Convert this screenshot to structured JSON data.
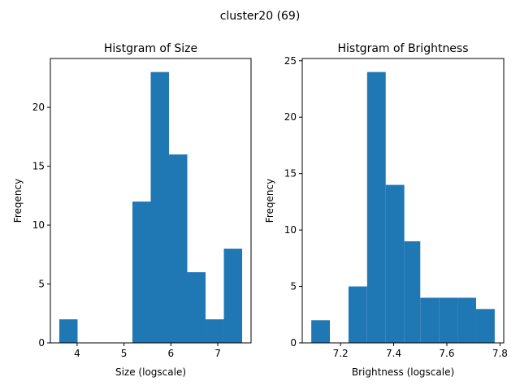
{
  "figure": {
    "suptitle": "cluster20 (69)",
    "bar_color": "#1f77b4"
  },
  "chart_data": [
    {
      "type": "bar",
      "title": "Histgram of Size",
      "xlabel": "Size (logscale)",
      "ylabel": "Freqency",
      "bins": [
        {
          "x0": 3.62,
          "x1": 4.01,
          "count": 2
        },
        {
          "x0": 4.01,
          "x1": 4.4,
          "count": 0
        },
        {
          "x0": 4.4,
          "x1": 4.79,
          "count": 0
        },
        {
          "x0": 4.79,
          "x1": 5.18,
          "count": 0
        },
        {
          "x0": 5.18,
          "x1": 5.57,
          "count": 12
        },
        {
          "x0": 5.57,
          "x1": 5.96,
          "count": 23
        },
        {
          "x0": 5.96,
          "x1": 6.35,
          "count": 16
        },
        {
          "x0": 6.35,
          "x1": 6.74,
          "count": 6
        },
        {
          "x0": 6.74,
          "x1": 7.13,
          "count": 2
        },
        {
          "x0": 7.13,
          "x1": 7.52,
          "count": 8
        }
      ],
      "xlim": [
        3.43,
        7.71
      ],
      "ylim": [
        0,
        24.15
      ],
      "xticks": [
        {
          "value": 4,
          "label": "4"
        },
        {
          "value": 5,
          "label": "5"
        },
        {
          "value": 6,
          "label": "6"
        },
        {
          "value": 7,
          "label": "7"
        }
      ],
      "yticks": [
        {
          "value": 0,
          "label": "0"
        },
        {
          "value": 5,
          "label": "5"
        },
        {
          "value": 10,
          "label": "10"
        },
        {
          "value": 15,
          "label": "15"
        },
        {
          "value": 20,
          "label": "20"
        }
      ],
      "grid": false
    },
    {
      "type": "bar",
      "title": "Histgram of Brightness",
      "xlabel": "Brightness (logscale)",
      "ylabel": "Freqency",
      "bins": [
        {
          "x0": 7.09,
          "x1": 7.16,
          "count": 2
        },
        {
          "x0": 7.16,
          "x1": 7.23,
          "count": 0
        },
        {
          "x0": 7.23,
          "x1": 7.3,
          "count": 5
        },
        {
          "x0": 7.3,
          "x1": 7.37,
          "count": 24
        },
        {
          "x0": 7.37,
          "x1": 7.44,
          "count": 14
        },
        {
          "x0": 7.44,
          "x1": 7.5,
          "count": 9
        },
        {
          "x0": 7.5,
          "x1": 7.57,
          "count": 4
        },
        {
          "x0": 7.57,
          "x1": 7.64,
          "count": 4
        },
        {
          "x0": 7.64,
          "x1": 7.71,
          "count": 4
        },
        {
          "x0": 7.71,
          "x1": 7.78,
          "count": 3
        }
      ],
      "xlim": [
        7.056,
        7.814
      ],
      "ylim": [
        0,
        25.2
      ],
      "xticks": [
        {
          "value": 7.2,
          "label": "7.2"
        },
        {
          "value": 7.4,
          "label": "7.4"
        },
        {
          "value": 7.6,
          "label": "7.6"
        },
        {
          "value": 7.8,
          "label": "7.8"
        }
      ],
      "yticks": [
        {
          "value": 0,
          "label": "0"
        },
        {
          "value": 5,
          "label": "5"
        },
        {
          "value": 10,
          "label": "10"
        },
        {
          "value": 15,
          "label": "15"
        },
        {
          "value": 20,
          "label": "20"
        },
        {
          "value": 25,
          "label": "25"
        }
      ],
      "grid": false
    }
  ]
}
